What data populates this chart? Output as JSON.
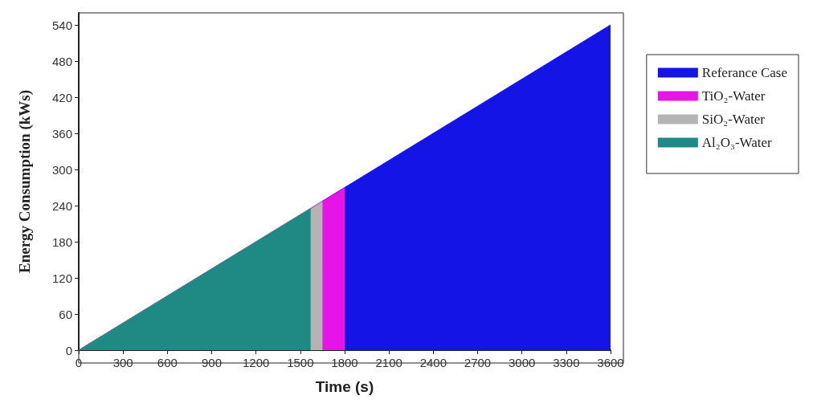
{
  "chart_data": {
    "type": "area",
    "xlabel": "Time (s)",
    "ylabel": "Energy Consumption (kWs)",
    "series": [
      {
        "name": "Referance Case",
        "color": "#1414e6",
        "x": [
          0,
          3600
        ],
        "values": [
          0,
          540
        ]
      },
      {
        "name": "TiO₂-Water",
        "color": "#e614e6",
        "x": [
          0,
          1800
        ],
        "values": [
          0,
          270
        ]
      },
      {
        "name": "SiO₂-Water",
        "color": "#b4b4b4",
        "x": [
          0,
          1650
        ],
        "values": [
          0,
          248
        ]
      },
      {
        "name": "Al₂O₃-Water",
        "color": "#1f8a84",
        "x": [
          0,
          1570
        ],
        "values": [
          0,
          235
        ]
      }
    ],
    "xlim": [
      0,
      3600
    ],
    "xticks": [
      0,
      300,
      600,
      900,
      1200,
      1500,
      1800,
      2100,
      2400,
      2700,
      3000,
      3300,
      3600
    ],
    "ylim": [
      0,
      560
    ],
    "yticks": [
      0,
      60,
      120,
      180,
      240,
      300,
      360,
      420,
      480,
      540
    ],
    "grid": false,
    "legend": "right"
  }
}
